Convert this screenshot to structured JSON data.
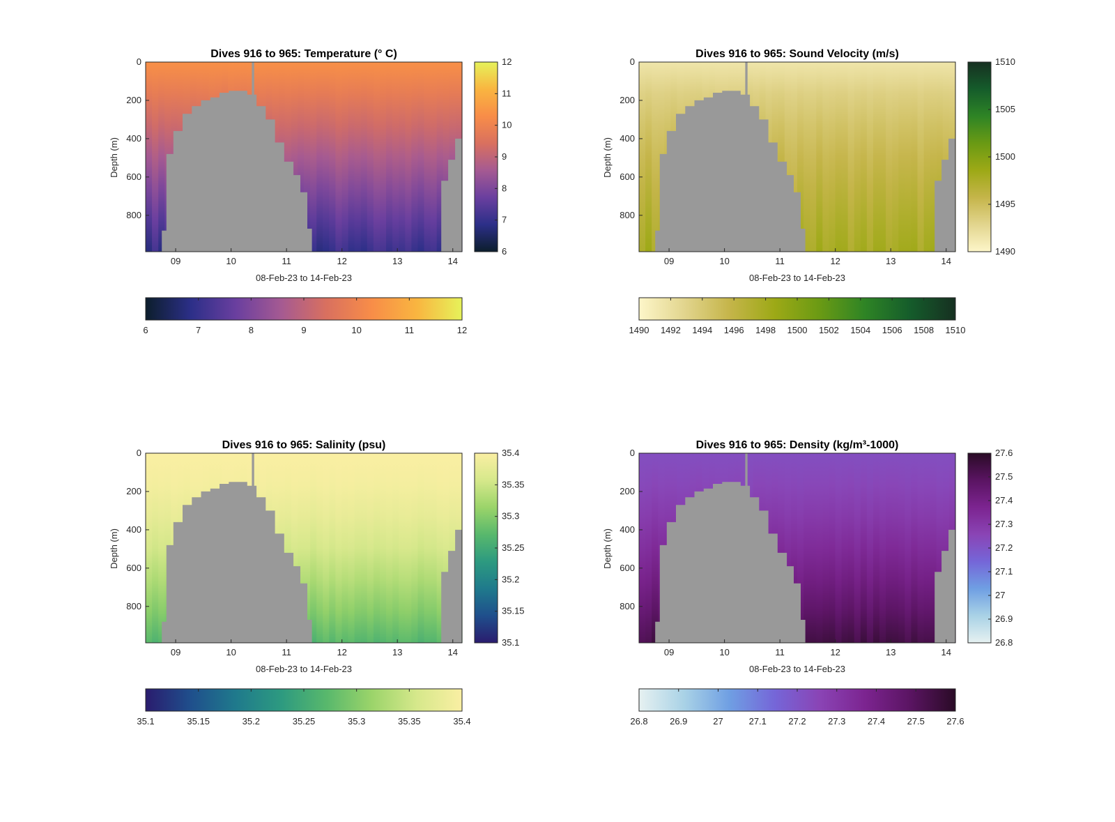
{
  "chart_data": [
    {
      "type": "heatmap",
      "title": "Dives 916 to 965: Temperature (° C)",
      "xlabel": "08-Feb-23 to 14-Feb-23",
      "ylabel": "Depth (m)",
      "x_ticks": [
        "09",
        "10",
        "11",
        "12",
        "13",
        "14"
      ],
      "x_range": [
        "2023-02-08T11:00",
        "2023-02-14T04:00"
      ],
      "y_ticks": [
        0,
        200,
        400,
        600,
        800
      ],
      "ylim": [
        0,
        990
      ],
      "y_reversed": true,
      "colorbar": {
        "min": 6,
        "max": 12,
        "ticks": [
          6,
          7,
          8,
          9,
          10,
          11,
          12
        ]
      },
      "h_colorbar": {
        "min": 6,
        "max": 12,
        "ticks": [
          6,
          7,
          8,
          9,
          10,
          11,
          12
        ]
      },
      "colors": [
        "#0c1e2c",
        "#2c2f88",
        "#6a3f9f",
        "#a55a92",
        "#d9705f",
        "#f88d48",
        "#f9b540",
        "#e6f25a"
      ],
      "surface_value": 10.35,
      "deep_value": 7.0,
      "depth_exponent": 1.0
    },
    {
      "type": "heatmap",
      "title": "Dives 916 to 965: Sound Velocity (m/s)",
      "xlabel": "08-Feb-23 to 14-Feb-23",
      "ylabel": "Depth (m)",
      "x_ticks": [
        "09",
        "10",
        "11",
        "12",
        "13",
        "14"
      ],
      "x_range": [
        "2023-02-08T11:00",
        "2023-02-14T04:00"
      ],
      "y_ticks": [
        0,
        200,
        400,
        600,
        800
      ],
      "ylim": [
        0,
        990
      ],
      "y_reversed": true,
      "colorbar": {
        "min": 1490,
        "max": 1510,
        "ticks": [
          1490,
          1495,
          1500,
          1505,
          1510
        ]
      },
      "h_colorbar": {
        "min": 1490,
        "max": 1510,
        "ticks": [
          1490,
          1492,
          1494,
          1496,
          1498,
          1500,
          1502,
          1504,
          1506,
          1508,
          1510
        ]
      },
      "colors": [
        "#fdf6c9",
        "#e2d58e",
        "#c5b54a",
        "#9da916",
        "#6a9a14",
        "#2e8425",
        "#155c2b",
        "#163021"
      ],
      "surface_value": 1491.5,
      "deep_value": 1497.8,
      "depth_exponent": 0.7
    },
    {
      "type": "heatmap",
      "title": "Dives 916 to 965: Salinity (psu)",
      "xlabel": "08-Feb-23 to 14-Feb-23",
      "ylabel": "Depth (m)",
      "x_ticks": [
        "09",
        "10",
        "11",
        "12",
        "13",
        "14"
      ],
      "x_range": [
        "2023-02-08T11:00",
        "2023-02-14T04:00"
      ],
      "y_ticks": [
        0,
        200,
        400,
        600,
        800
      ],
      "ylim": [
        0,
        990
      ],
      "y_reversed": true,
      "colorbar": {
        "min": 35.1,
        "max": 35.4,
        "ticks": [
          35.1,
          35.15,
          35.2,
          35.25,
          35.3,
          35.35,
          35.4
        ]
      },
      "h_colorbar": {
        "min": 35.1,
        "max": 35.4,
        "ticks": [
          35.1,
          35.15,
          35.2,
          35.25,
          35.3,
          35.35,
          35.4
        ]
      },
      "colors": [
        "#2a1c6e",
        "#1f4f8c",
        "#1f7a8c",
        "#2d9a80",
        "#58b86c",
        "#9bd46a",
        "#d6e88b",
        "#faefa3"
      ],
      "surface_value": 35.4,
      "deep_value": 35.27,
      "depth_exponent": 1.6
    },
    {
      "type": "heatmap",
      "title": "Dives 916 to 965: Density (kg/m³-1000)",
      "xlabel": "08-Feb-23 to 14-Feb-23",
      "ylabel": "Depth (m)",
      "x_ticks": [
        "09",
        "10",
        "11",
        "12",
        "13",
        "14"
      ],
      "x_range": [
        "2023-02-08T11:00",
        "2023-02-14T04:00"
      ],
      "y_ticks": [
        0,
        200,
        400,
        600,
        800
      ],
      "ylim": [
        0,
        990
      ],
      "y_reversed": true,
      "colorbar": {
        "min": 26.8,
        "max": 27.6,
        "ticks": [
          26.8,
          26.9,
          27,
          27.1,
          27.2,
          27.3,
          27.4,
          27.5,
          27.6
        ]
      },
      "h_colorbar": {
        "min": 26.8,
        "max": 27.6,
        "ticks": [
          26.8,
          26.9,
          27,
          27.1,
          27.2,
          27.3,
          27.4,
          27.5,
          27.6
        ]
      },
      "colors": [
        "#e6f1f1",
        "#a9d2e6",
        "#6f9fe3",
        "#7566d8",
        "#8a44b5",
        "#7c2490",
        "#5a1462",
        "#2a0b26"
      ],
      "surface_value": 27.22,
      "deep_value": 27.53,
      "depth_exponent": 1.4
    }
  ],
  "mask_color": "#999999",
  "seamount_profile": {
    "x_hours": [
      0,
      6,
      7,
      9,
      12,
      16,
      20,
      24,
      28,
      32,
      36,
      40,
      44,
      48,
      52,
      56,
      60,
      64,
      67,
      70,
      72,
      74,
      76,
      82,
      90,
      100,
      110,
      120,
      126,
      128,
      131,
      134,
      137,
      139,
      141,
      142,
      150
    ],
    "depth_m": [
      990,
      990,
      880,
      480,
      360,
      270,
      230,
      200,
      185,
      160,
      150,
      150,
      170,
      230,
      300,
      420,
      520,
      590,
      680,
      870,
      990,
      990,
      990,
      990,
      990,
      990,
      990,
      990,
      990,
      620,
      510,
      400,
      320,
      280,
      250,
      240,
      240
    ]
  },
  "gap_column": {
    "from_hour": 46,
    "to_hour": 47,
    "depth_m": 990
  }
}
